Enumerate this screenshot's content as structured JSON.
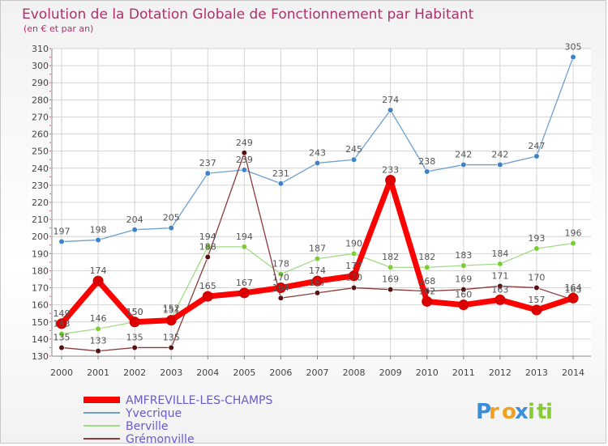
{
  "chart_data": {
    "type": "line",
    "title": "Evolution de la Dotation Globale de Fonctionnement par Habitant",
    "subtitle": "(en € et par an)",
    "xlabel": "",
    "ylabel": "",
    "x": [
      2000,
      2001,
      2002,
      2003,
      2004,
      2005,
      2006,
      2007,
      2008,
      2009,
      2010,
      2011,
      2012,
      2013,
      2014
    ],
    "ylim": [
      130,
      310
    ],
    "yticks": [
      130,
      140,
      150,
      160,
      170,
      180,
      190,
      200,
      210,
      220,
      230,
      240,
      250,
      260,
      270,
      280,
      290,
      300,
      310
    ],
    "grid": true,
    "legend_position": "bottom-left",
    "series": [
      {
        "name": "Yvecrique",
        "color": "#6ea0cf",
        "marker": "#3e82c8",
        "values": [
          197,
          198,
          204,
          205,
          237,
          239,
          231,
          243,
          245,
          274,
          238,
          242,
          242,
          247,
          305
        ]
      },
      {
        "name": "Berville",
        "color": "#9fdc86",
        "marker": "#7acd34",
        "values": [
          143,
          146,
          150,
          152,
          194,
          194,
          178,
          187,
          190,
          182,
          182,
          183,
          184,
          193,
          196
        ]
      },
      {
        "name": "Grémonville",
        "color": "#8a3a3a",
        "marker": "#5a1010",
        "values": [
          135,
          133,
          135,
          135,
          188,
          249,
          164,
          167,
          170,
          169,
          168,
          169,
          171,
          170,
          163
        ]
      },
      {
        "name": "AMFREVILLE-LES-CHAMPS",
        "color": "#ff0000",
        "marker": "#dd0000",
        "values": [
          149,
          174,
          150,
          151,
          165,
          167,
          170,
          174,
          177,
          233,
          162,
          160,
          163,
          157,
          164
        ]
      }
    ]
  },
  "legend": {
    "items": [
      {
        "name": "AMFREVILLE-LES-CHAMPS",
        "color": "#ff0000"
      },
      {
        "name": "Yvecrique",
        "color": "#6ea0cf"
      },
      {
        "name": "Berville",
        "color": "#9fdc86"
      },
      {
        "name": "Grémonville",
        "color": "#8a3a3a"
      }
    ],
    "text_color": "#6a5acd"
  },
  "brand": {
    "letters": [
      "P",
      "r",
      "o",
      "x",
      "i",
      "t",
      "i"
    ],
    "colors": [
      "#3a8fd8",
      "#f0a020",
      "#f0a020",
      "#3a8fd8",
      "#88cc33",
      "#88cc33",
      "#88cc33"
    ]
  }
}
